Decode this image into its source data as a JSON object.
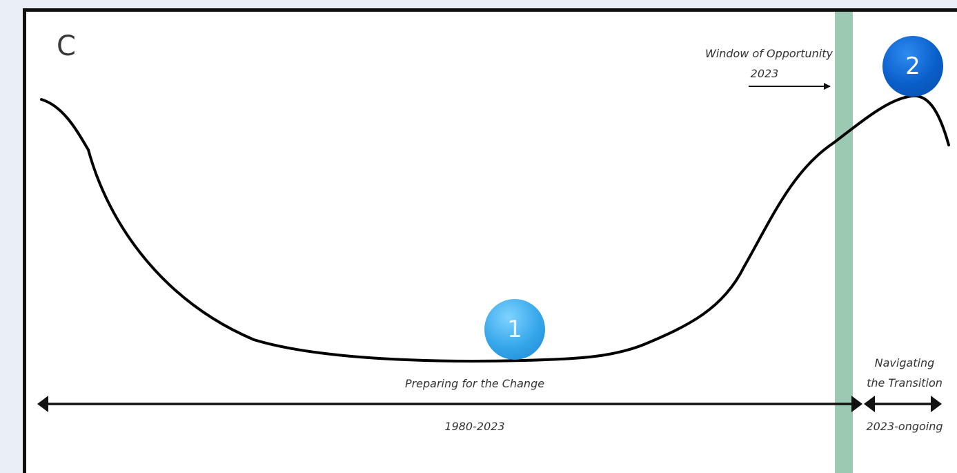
{
  "panel_letter": "C",
  "window": {
    "label_line1": "Window of Opportunity",
    "label_line2": "2023",
    "band_color": "#9cc9b1"
  },
  "markers": [
    {
      "number": "1",
      "color": "#35a6ea"
    },
    {
      "number": "2",
      "color": "#0a5ec9"
    }
  ],
  "phases": [
    {
      "label": "Preparing for the Change",
      "period": "1980-2023"
    },
    {
      "label_line1": "Navigating",
      "label_line2": "the Transition",
      "period": "2023-ongoing"
    }
  ]
}
